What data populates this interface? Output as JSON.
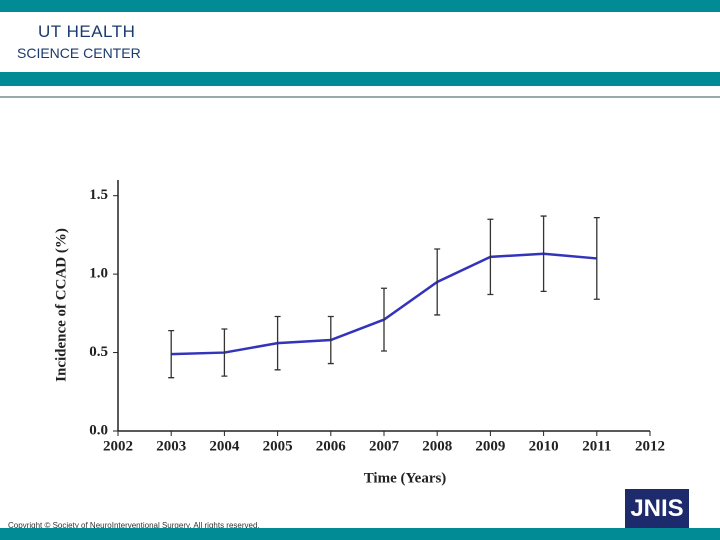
{
  "header": {
    "logo_line1": "UT Health",
    "logo_line2": "Science Center"
  },
  "chart_data": {
    "type": "line",
    "y_label": "Incidence of CCAD (%)",
    "x_label": "Time (Years)",
    "x": [
      2003,
      2004,
      2005,
      2006,
      2007,
      2008,
      2009,
      2010,
      2011
    ],
    "values": [
      0.49,
      0.5,
      0.56,
      0.58,
      0.71,
      0.95,
      1.11,
      1.13,
      1.1
    ],
    "errors": [
      0.15,
      0.15,
      0.17,
      0.15,
      0.2,
      0.21,
      0.24,
      0.24,
      0.26
    ],
    "color": "#3333bb",
    "xlim": [
      2002,
      2012
    ],
    "xticks": [
      2002,
      2003,
      2004,
      2005,
      2006,
      2007,
      2008,
      2009,
      2010,
      2011,
      2012
    ],
    "ylim": [
      0,
      1.6
    ],
    "yticks": [
      {
        "value": 0,
        "label": "0.0"
      },
      {
        "value": 0.5,
        "label": "0.5"
      },
      {
        "value": 1,
        "label": "1.0"
      },
      {
        "value": 1.5,
        "label": "1.5"
      }
    ]
  },
  "footer": {
    "copyright": "Copyright © Society of NeuroInterventional Surgery. All rights reserved.",
    "logo": "JNIS"
  }
}
